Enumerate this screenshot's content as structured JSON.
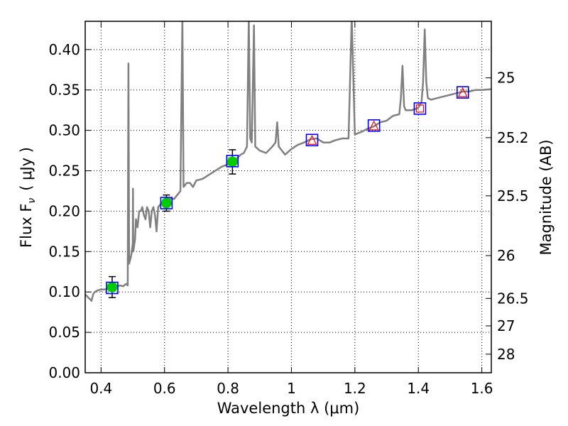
{
  "chart_data": {
    "type": "line",
    "title": "",
    "xlabel": "Wavelength  λ (μm)",
    "ylabel": "Flux  F",
    "ylabel_subscript": "ν",
    "ylabel_unit": "(  μJy )",
    "right_ylabel": "Magnitude (AB)",
    "xlim": [
      0.35,
      1.63
    ],
    "ylim": [
      0.0,
      0.435
    ],
    "grid": true,
    "x_ticks": [
      {
        "value": 0.4,
        "label": "0.4"
      },
      {
        "value": 0.6,
        "label": "0.6"
      },
      {
        "value": 0.8,
        "label": "0.8"
      },
      {
        "value": 1.0,
        "label": "1"
      },
      {
        "value": 1.2,
        "label": "1.2"
      },
      {
        "value": 1.4,
        "label": "1.4"
      },
      {
        "value": 1.6,
        "label": "1.6"
      }
    ],
    "y_ticks": [
      {
        "value": 0.0,
        "label": "0.00"
      },
      {
        "value": 0.05,
        "label": "0.05"
      },
      {
        "value": 0.1,
        "label": "0.10"
      },
      {
        "value": 0.15,
        "label": "0.15"
      },
      {
        "value": 0.2,
        "label": "0.20"
      },
      {
        "value": 0.25,
        "label": "0.25"
      },
      {
        "value": 0.3,
        "label": "0.30"
      },
      {
        "value": 0.35,
        "label": "0.35"
      },
      {
        "value": 0.4,
        "label": "0.40"
      }
    ],
    "right_ticks": [
      {
        "flux": 0.365,
        "label": "25"
      },
      {
        "flux": 0.291,
        "label": "25.2"
      },
      {
        "flux": 0.219,
        "label": "25.5"
      },
      {
        "flux": 0.145,
        "label": "26"
      },
      {
        "flux": 0.092,
        "label": "26.5"
      },
      {
        "flux": 0.058,
        "label": "27"
      },
      {
        "flux": 0.023,
        "label": "28"
      }
    ],
    "series": [
      {
        "kind": "template-spectrum",
        "color": "#808080",
        "points": [
          [
            0.35,
            0.097
          ],
          [
            0.36,
            0.093
          ],
          [
            0.365,
            0.091
          ],
          [
            0.37,
            0.089
          ],
          [
            0.375,
            0.097
          ],
          [
            0.38,
            0.1
          ],
          [
            0.39,
            0.102
          ],
          [
            0.4,
            0.103
          ],
          [
            0.41,
            0.103
          ],
          [
            0.42,
            0.104
          ],
          [
            0.43,
            0.105
          ],
          [
            0.44,
            0.106
          ],
          [
            0.45,
            0.107
          ],
          [
            0.46,
            0.108
          ],
          [
            0.47,
            0.107
          ],
          [
            0.475,
            0.109
          ],
          [
            0.48,
            0.11
          ],
          [
            0.484,
            0.108
          ],
          [
            0.4862,
            0.383
          ],
          [
            0.4885,
            0.135
          ],
          [
            0.495,
            0.145
          ],
          [
            0.5,
            0.16
          ],
          [
            0.5007,
            0.228
          ],
          [
            0.5015,
            0.15
          ],
          [
            0.507,
            0.165
          ],
          [
            0.51,
            0.19
          ],
          [
            0.515,
            0.18
          ],
          [
            0.52,
            0.2
          ],
          [
            0.525,
            0.2
          ],
          [
            0.53,
            0.205
          ],
          [
            0.535,
            0.195
          ],
          [
            0.54,
            0.19
          ],
          [
            0.545,
            0.205
          ],
          [
            0.55,
            0.2
          ],
          [
            0.555,
            0.18
          ],
          [
            0.56,
            0.2
          ],
          [
            0.565,
            0.205
          ],
          [
            0.57,
            0.195
          ],
          [
            0.575,
            0.175
          ],
          [
            0.58,
            0.205
          ],
          [
            0.59,
            0.21
          ],
          [
            0.6,
            0.21
          ],
          [
            0.61,
            0.215
          ],
          [
            0.62,
            0.215
          ],
          [
            0.63,
            0.215
          ],
          [
            0.64,
            0.22
          ],
          [
            0.65,
            0.225
          ],
          [
            0.6563,
            0.44
          ],
          [
            0.66,
            0.23
          ],
          [
            0.67,
            0.235
          ],
          [
            0.68,
            0.235
          ],
          [
            0.69,
            0.23
          ],
          [
            0.7,
            0.238
          ],
          [
            0.72,
            0.24
          ],
          [
            0.74,
            0.245
          ],
          [
            0.76,
            0.25
          ],
          [
            0.78,
            0.255
          ],
          [
            0.8,
            0.258
          ],
          [
            0.82,
            0.262
          ],
          [
            0.84,
            0.27
          ],
          [
            0.85,
            0.272
          ],
          [
            0.86,
            0.28
          ],
          [
            0.8655,
            0.44
          ],
          [
            0.87,
            0.29
          ],
          [
            0.875,
            0.285
          ],
          [
            0.882,
            0.43
          ],
          [
            0.886,
            0.28
          ],
          [
            0.9,
            0.275
          ],
          [
            0.92,
            0.272
          ],
          [
            0.94,
            0.28
          ],
          [
            0.95,
            0.285
          ],
          [
            0.955,
            0.31
          ],
          [
            0.96,
            0.28
          ],
          [
            0.97,
            0.275
          ],
          [
            0.98,
            0.27
          ],
          [
            1.0,
            0.277
          ],
          [
            1.02,
            0.282
          ],
          [
            1.04,
            0.285
          ],
          [
            1.06,
            0.289
          ],
          [
            1.08,
            0.29
          ],
          [
            1.1,
            0.285
          ],
          [
            1.12,
            0.285
          ],
          [
            1.14,
            0.288
          ],
          [
            1.16,
            0.29
          ],
          [
            1.18,
            0.29
          ],
          [
            1.19,
            0.44
          ],
          [
            1.2,
            0.295
          ],
          [
            1.22,
            0.298
          ],
          [
            1.24,
            0.302
          ],
          [
            1.26,
            0.305
          ],
          [
            1.28,
            0.31
          ],
          [
            1.3,
            0.312
          ],
          [
            1.32,
            0.318
          ],
          [
            1.34,
            0.32
          ],
          [
            1.345,
            0.34
          ],
          [
            1.35,
            0.38
          ],
          [
            1.355,
            0.33
          ],
          [
            1.36,
            0.325
          ],
          [
            1.38,
            0.325
          ],
          [
            1.4,
            0.328
          ],
          [
            1.41,
            0.335
          ],
          [
            1.415,
            0.36
          ],
          [
            1.42,
            0.425
          ],
          [
            1.425,
            0.36
          ],
          [
            1.43,
            0.34
          ],
          [
            1.44,
            0.338
          ],
          [
            1.46,
            0.34
          ],
          [
            1.48,
            0.342
          ],
          [
            1.5,
            0.344
          ],
          [
            1.52,
            0.346
          ],
          [
            1.54,
            0.348
          ],
          [
            1.56,
            0.348
          ],
          [
            1.58,
            0.35
          ],
          [
            1.6,
            0.35
          ],
          [
            1.63,
            0.351
          ]
        ]
      }
    ],
    "measured_points": [
      {
        "x": 0.435,
        "y": 0.106,
        "err": 0.013,
        "marker_color": "#00cc00"
      },
      {
        "x": 0.606,
        "y": 0.21,
        "err": 0.01,
        "marker_color": "#00cc00"
      },
      {
        "x": 0.814,
        "y": 0.261,
        "err": 0.015,
        "marker_color": "#00cc00"
      }
    ],
    "model_points": [
      {
        "x": 0.435,
        "y": 0.105,
        "shape": "square"
      },
      {
        "x": 0.606,
        "y": 0.21,
        "shape": "square"
      },
      {
        "x": 0.814,
        "y": 0.262,
        "shape": "square"
      },
      {
        "x": 1.065,
        "y": 0.288,
        "shape": "square",
        "inner": "triangle"
      },
      {
        "x": 1.26,
        "y": 0.306,
        "shape": "square",
        "inner": "triangle"
      },
      {
        "x": 1.405,
        "y": 0.327,
        "shape": "square",
        "inner": "square"
      },
      {
        "x": 1.54,
        "y": 0.347,
        "shape": "square",
        "inner": "triangle"
      }
    ],
    "colors": {
      "spectrum": "#808080",
      "measured": "#00cc00",
      "model_box": "#0000ff",
      "upper_limit": "#ff0000"
    }
  }
}
